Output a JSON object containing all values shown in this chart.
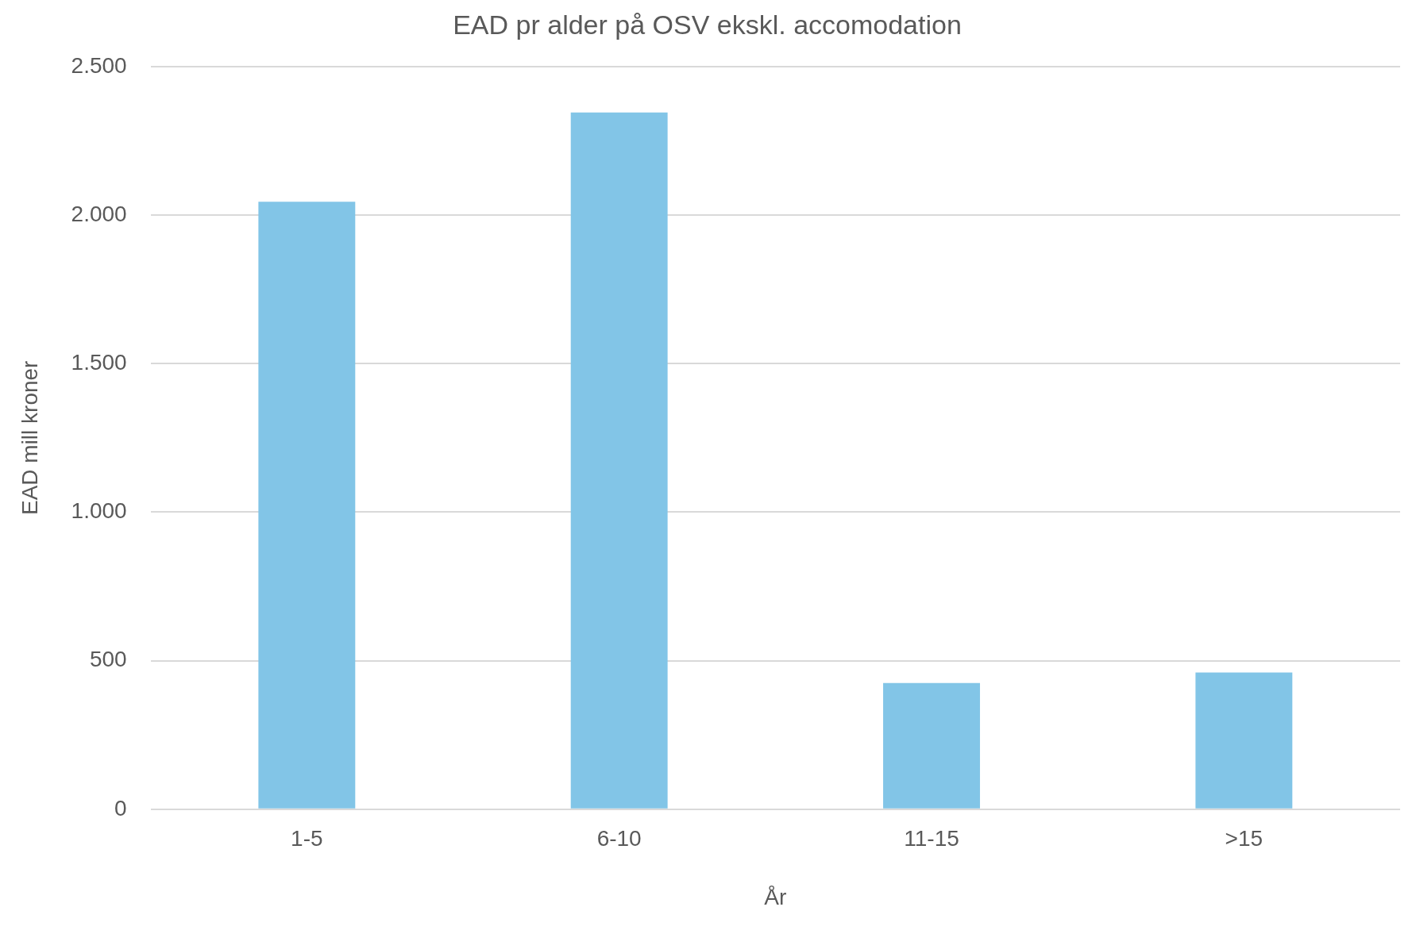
{
  "chart_data": {
    "type": "bar",
    "title": "EAD pr alder på OSV ekskl. accomodation",
    "xlabel": "År",
    "ylabel": "EAD mill kroner",
    "categories": [
      "1-5",
      "6-10",
      "11-15",
      ">15"
    ],
    "values": [
      2045,
      2345,
      425,
      460
    ],
    "color": "#82c5e7",
    "ylim": [
      0,
      2500
    ],
    "yticks": [
      0,
      {
        "value": 500,
        "label": "500"
      },
      {
        "value": 1000,
        "label": "1.000"
      },
      {
        "value": 1500,
        "label": "1.500"
      },
      {
        "value": 2000,
        "label": "2.000"
      },
      {
        "value": 2500,
        "label": "2.500"
      }
    ],
    "grid": "y",
    "legend": false
  }
}
